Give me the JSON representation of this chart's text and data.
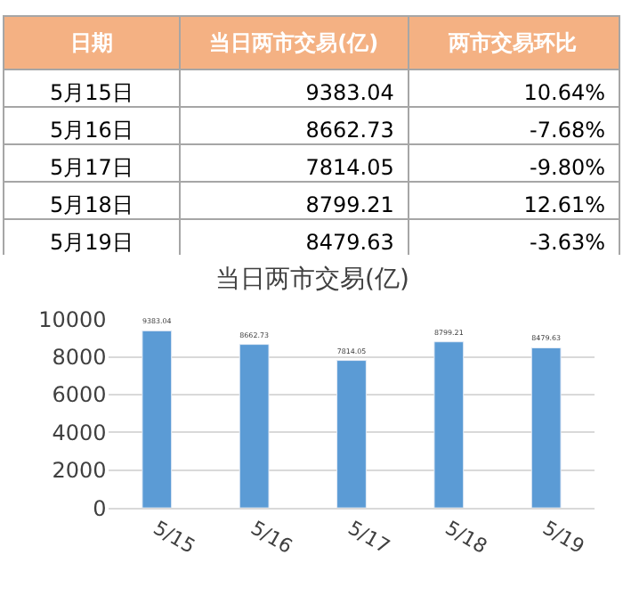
{
  "chart_data": [
    {
      "type": "other",
      "categories": [
        "日期",
        "当日两市交易(亿)",
        "两市交易环比"
      ],
      "annotations": [
        "5月15日",
        "9383.04",
        "10.64%",
        "5月16日",
        "8662.73",
        "-7.68%",
        "5月17日",
        "7814.05",
        "-9.80%",
        "5月18日",
        "8799.21",
        "12.61%",
        "5月19日",
        "8479.63",
        "-3.63%"
      ],
      "color": "#f4b183"
    },
    {
      "type": "bar",
      "title": "当日两市交易(亿)",
      "categories": [
        "5/15",
        "5/16",
        "5/17",
        "5/18",
        "5/19"
      ],
      "values": [
        9383.04,
        8662.73,
        7814.05,
        8799.21,
        8479.63
      ],
      "color": "#5b9bd5",
      "ylim": [
        0,
        10000
      ],
      "yticks": [
        0,
        2000,
        4000,
        6000,
        8000,
        10000
      ],
      "grid": "y",
      "data_labels": true
    }
  ]
}
